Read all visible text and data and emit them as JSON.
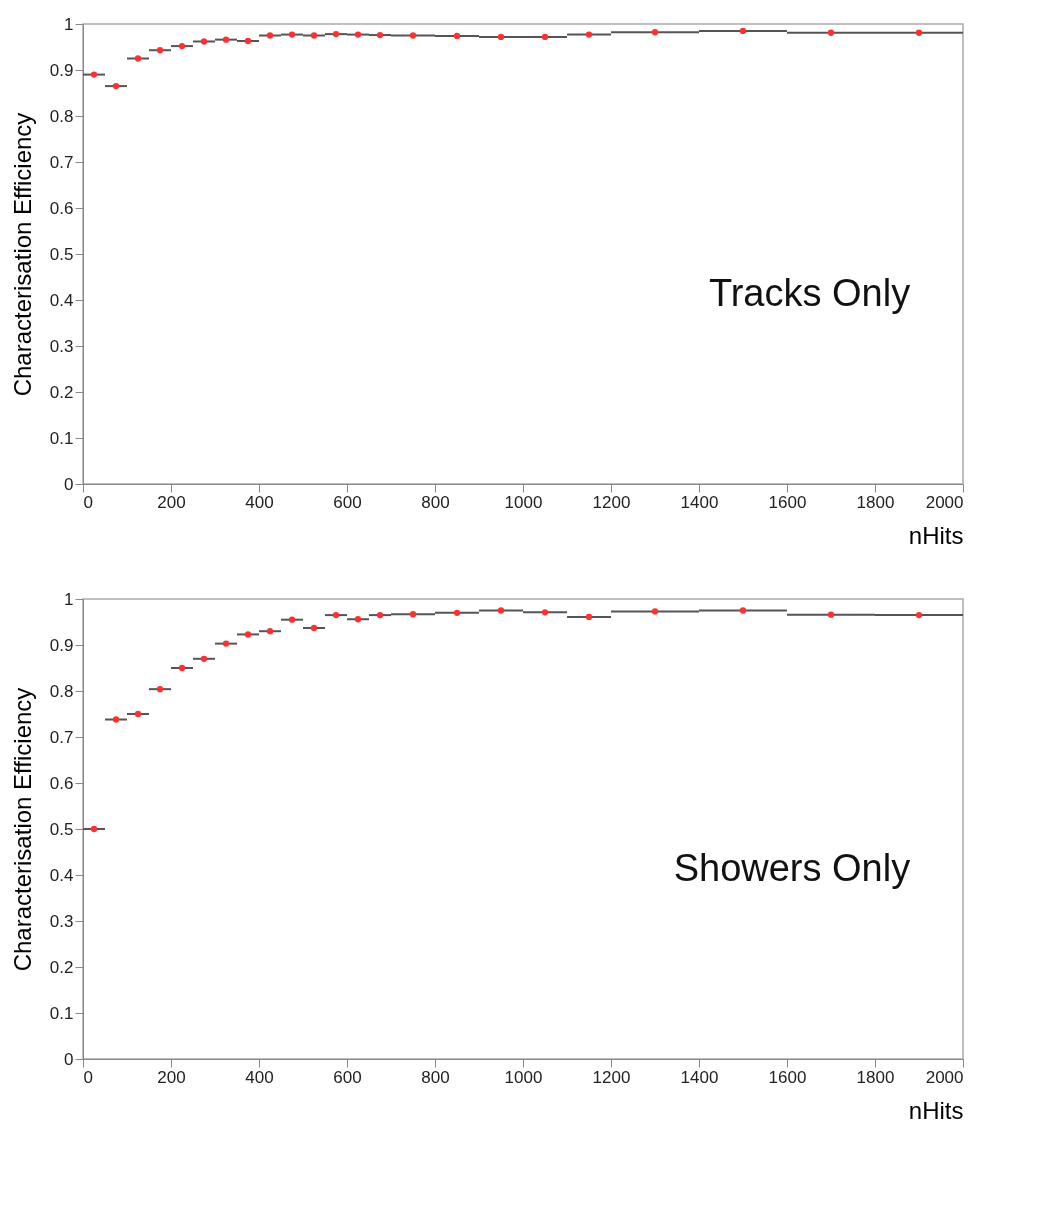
{
  "chart_data": [
    {
      "type": "scatter",
      "xlabel": "nHits",
      "ylabel": "Characterisation Efficiency",
      "annotations": [
        "Tracks Only"
      ],
      "x": [
        25,
        75,
        125,
        175,
        225,
        275,
        325,
        375,
        425,
        475,
        525,
        575,
        625,
        675,
        750,
        850,
        950,
        1050,
        1150,
        1300,
        1500,
        1700,
        1900
      ],
      "series": [
        {
          "color": "#ff3030",
          "values": [
            0.89,
            0.865,
            0.925,
            0.943,
            0.952,
            0.962,
            0.966,
            0.963,
            0.975,
            0.977,
            0.975,
            0.978,
            0.977,
            0.976,
            0.975,
            0.974,
            0.972,
            0.972,
            0.977,
            0.982,
            0.985,
            0.981,
            0.981
          ],
          "xerrors": [
            25,
            25,
            25,
            25,
            25,
            25,
            25,
            25,
            25,
            25,
            25,
            25,
            25,
            25,
            50,
            50,
            50,
            50,
            50,
            100,
            100,
            100,
            100
          ]
        }
      ],
      "xlim": [
        0,
        2000
      ],
      "ylim": [
        0,
        1
      ],
      "xticks": [
        0,
        200,
        400,
        600,
        800,
        1000,
        1200,
        1400,
        1600,
        1800,
        2000
      ],
      "yticks": [
        0,
        0.1,
        0.2,
        0.3,
        0.4,
        0.5,
        0.6,
        0.7,
        0.8,
        0.9,
        1
      ],
      "grid": false,
      "marker": "circle"
    },
    {
      "type": "scatter",
      "xlabel": "nHits",
      "ylabel": "Characterisation Efficiency",
      "annotations": [
        "Showers Only"
      ],
      "x": [
        25,
        75,
        125,
        175,
        225,
        275,
        325,
        375,
        425,
        475,
        525,
        575,
        625,
        675,
        750,
        850,
        950,
        1050,
        1150,
        1300,
        1500,
        1700,
        1900
      ],
      "series": [
        {
          "color": "#ff3030",
          "values": [
            0.5,
            0.738,
            0.75,
            0.804,
            0.85,
            0.87,
            0.903,
            0.923,
            0.93,
            0.955,
            0.937,
            0.965,
            0.956,
            0.965,
            0.967,
            0.97,
            0.975,
            0.971,
            0.961,
            0.973,
            0.975,
            0.966,
            0.965
          ],
          "xerrors": [
            25,
            25,
            25,
            25,
            25,
            25,
            25,
            25,
            25,
            25,
            25,
            25,
            25,
            25,
            50,
            50,
            50,
            50,
            50,
            100,
            100,
            100,
            100
          ]
        }
      ],
      "xlim": [
        0,
        2000
      ],
      "ylim": [
        0,
        1
      ],
      "xticks": [
        0,
        200,
        400,
        600,
        800,
        1000,
        1200,
        1400,
        1600,
        1800,
        2000
      ],
      "yticks": [
        0,
        0.1,
        0.2,
        0.3,
        0.4,
        0.5,
        0.6,
        0.7,
        0.8,
        0.9,
        1
      ],
      "grid": false,
      "marker": "circle"
    }
  ]
}
